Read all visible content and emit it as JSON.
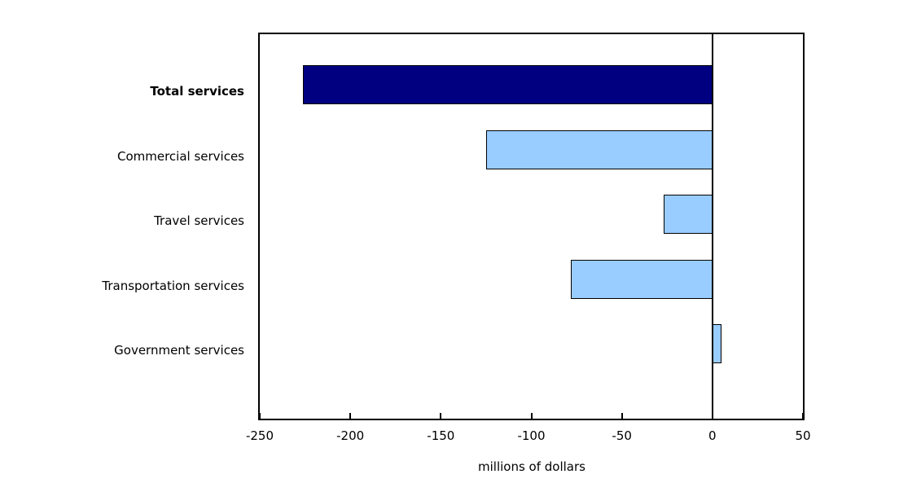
{
  "chart_data": {
    "type": "bar",
    "orientation": "horizontal",
    "categories": [
      "Total services",
      "Commercial services",
      "Travel services",
      "Transportation services",
      "Government services"
    ],
    "values": [
      -226,
      -125,
      -27,
      -78,
      5
    ],
    "categories_bold": [
      true,
      false,
      false,
      false,
      false
    ],
    "bar_colors": [
      "#000080",
      "#99CCFF",
      "#99CCFF",
      "#99CCFF",
      "#99CCFF"
    ],
    "bar_border_color": "#000000",
    "title": "",
    "xlabel": "millions of dollars",
    "ylabel": "",
    "xlim": [
      -250,
      50
    ],
    "xticks": [
      -250,
      -200,
      -150,
      -100,
      -50,
      0,
      50
    ],
    "zero_line": true,
    "grid": false,
    "legend": "none",
    "background_color": "#FFFFFF",
    "plot_border_color": "#000000"
  }
}
